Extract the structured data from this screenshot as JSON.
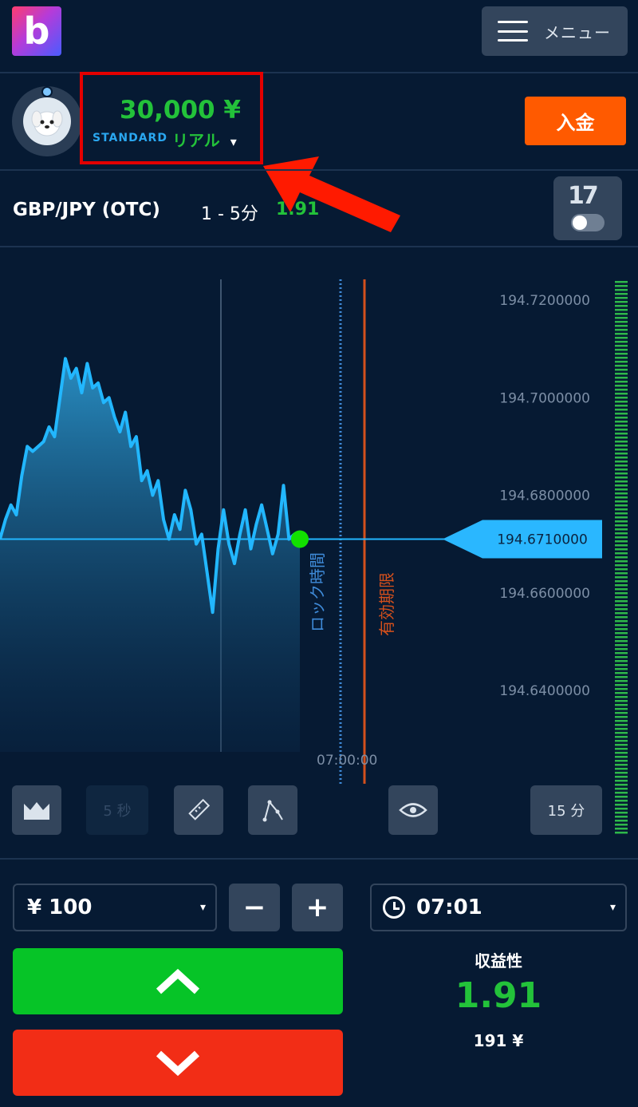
{
  "header": {
    "logo_letter": "b",
    "menu_label": "メニュー"
  },
  "account": {
    "balance": "30,000 ¥",
    "type": "STANDARD",
    "mode": "リアル",
    "mode_caret": "▾",
    "deposit_label": "入金"
  },
  "instrument": {
    "pair": "GBP/JPY (OTC)",
    "duration_range": "1 - 5分",
    "payout": "1.91",
    "tv_logo": "17"
  },
  "chart": {
    "price_labels": [
      "194.7200000",
      "194.7000000",
      "194.6800000",
      "194.6710000",
      "194.6600000",
      "194.6400000"
    ],
    "current_price": "194.6710000",
    "lock_label": "ロック時間",
    "expiry_label": "有効期限",
    "time_label": "07:00:00"
  },
  "chart_data": {
    "type": "area",
    "ylim": [
      194.635,
      194.725
    ],
    "x": [
      0,
      1,
      2,
      3,
      4,
      5,
      6,
      7,
      8,
      9,
      10,
      11,
      12,
      13,
      14,
      15,
      16,
      17,
      18,
      19,
      20,
      21,
      22,
      23,
      24,
      25,
      26,
      27,
      28,
      29,
      30,
      31,
      32,
      33,
      34,
      35,
      36,
      37,
      38,
      39,
      40,
      41,
      42,
      43,
      44,
      45,
      46,
      47,
      48,
      49,
      50,
      51,
      52,
      53,
      54,
      55,
      56,
      57,
      58,
      59,
      60,
      61
    ],
    "values": [
      194.671,
      194.675,
      194.678,
      194.676,
      194.684,
      194.69,
      194.689,
      194.69,
      194.691,
      194.694,
      194.692,
      194.7,
      194.708,
      194.704,
      194.706,
      194.701,
      194.707,
      194.702,
      194.703,
      194.699,
      194.7,
      194.696,
      194.693,
      194.697,
      194.69,
      194.692,
      194.683,
      194.685,
      194.68,
      194.683,
      194.675,
      194.671,
      194.676,
      194.673,
      194.681,
      194.677,
      194.67,
      194.672,
      194.664,
      194.656,
      194.669,
      194.677,
      194.67,
      194.666,
      194.672,
      194.677,
      194.669,
      194.674,
      194.678,
      194.673,
      194.668,
      194.672,
      194.682,
      194.671,
      194.672,
      194.67,
      194.671,
      194.671,
      194.671,
      194.671,
      194.671,
      194.671
    ],
    "grid": false
  },
  "tools": {
    "timeframe": "5 秒",
    "interval": "15 分"
  },
  "trade": {
    "amount": "¥ 100",
    "amount_caret": "▾",
    "minus": "−",
    "plus": "+",
    "time": "07:01",
    "time_caret": "▾",
    "profit_label": "収益性",
    "profit_value": "1.91",
    "profit_amount": "191 ¥"
  },
  "colors": {
    "accent_green": "#23c23a",
    "up_button": "#06c427",
    "down_button": "#f22d16",
    "deposit": "#ff5a00",
    "chart_line": "#22b7ff",
    "highlight_box": "#e30000"
  }
}
